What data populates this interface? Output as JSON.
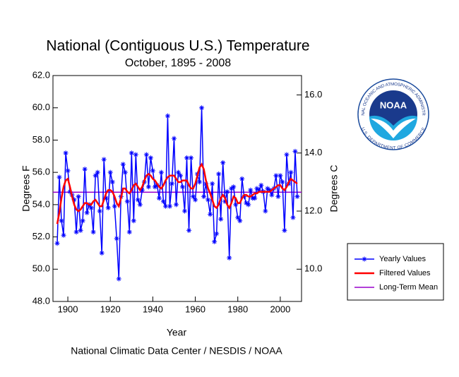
{
  "chart_data": {
    "type": "line",
    "title": "National (Contiguous U.S.) Temperature",
    "subtitle": "October, 1895 - 2008",
    "x_label": "Year",
    "y_label": "Degrees F",
    "y2_label": "Degrees C",
    "footer": "National Climatic Data Center / NESDIS / NOAA",
    "x": [
      1895,
      1896,
      1897,
      1898,
      1899,
      1900,
      1901,
      1902,
      1903,
      1904,
      1905,
      1906,
      1907,
      1908,
      1909,
      1910,
      1911,
      1912,
      1913,
      1914,
      1915,
      1916,
      1917,
      1918,
      1919,
      1920,
      1921,
      1922,
      1923,
      1924,
      1925,
      1926,
      1927,
      1928,
      1929,
      1930,
      1931,
      1932,
      1933,
      1934,
      1935,
      1936,
      1937,
      1938,
      1939,
      1940,
      1941,
      1942,
      1943,
      1944,
      1945,
      1946,
      1947,
      1948,
      1949,
      1950,
      1951,
      1952,
      1953,
      1954,
      1955,
      1956,
      1957,
      1958,
      1959,
      1960,
      1961,
      1962,
      1963,
      1964,
      1965,
      1966,
      1967,
      1968,
      1969,
      1970,
      1971,
      1972,
      1973,
      1974,
      1975,
      1976,
      1977,
      1978,
      1979,
      1980,
      1981,
      1982,
      1983,
      1984,
      1985,
      1986,
      1987,
      1988,
      1989,
      1990,
      1991,
      1992,
      1993,
      1994,
      1995,
      1996,
      1997,
      1998,
      1999,
      2000,
      2001,
      2002,
      2003,
      2004,
      2005,
      2006,
      2007,
      2008
    ],
    "series": [
      {
        "name": "Yearly Values",
        "color": "#0000ff",
        "marker": "asterisk",
        "values": [
          51.6,
          55.7,
          53.0,
          52.1,
          57.2,
          56.1,
          54.8,
          54.6,
          54.3,
          52.3,
          54.5,
          52.4,
          53.0,
          56.2,
          53.5,
          54.0,
          53.8,
          52.3,
          55.8,
          56.0,
          53.6,
          51.0,
          56.8,
          54.4,
          53.8,
          56.0,
          55.4,
          53.9,
          51.9,
          49.4,
          54.5,
          56.5,
          56.0,
          54.2,
          52.3,
          57.2,
          53.0,
          57.1,
          54.3,
          54.0,
          54.9,
          55.4,
          57.1,
          55.1,
          56.9,
          56.1,
          55.1,
          55.2,
          54.4,
          56.0,
          54.2,
          53.9,
          59.5,
          53.9,
          55.3,
          58.1,
          54.0,
          56.0,
          55.8,
          55.1,
          53.6,
          56.9,
          52.4,
          56.9,
          54.5,
          54.3,
          55.9,
          55.4,
          60.0,
          54.5,
          55.3,
          54.3,
          53.4,
          55.3,
          51.7,
          52.2,
          55.9,
          53.1,
          56.6,
          54.2,
          54.8,
          50.7,
          55.0,
          55.1,
          54.0,
          53.2,
          53.0,
          55.6,
          54.5,
          54.1,
          54.0,
          54.9,
          54.4,
          54.4,
          55.0,
          54.9,
          55.2,
          54.8,
          53.6,
          55.0,
          54.9,
          54.6,
          55.0,
          55.8,
          54.5,
          55.8,
          55.4,
          52.4,
          57.1,
          55.3,
          56.0,
          53.2,
          57.3,
          54.5
        ]
      },
      {
        "name": "Filtered Values",
        "color": "#ff0000",
        "values": [
          52.8,
          53.5,
          54.4,
          55.1,
          55.5,
          55.6,
          55.1,
          54.5,
          54.0,
          53.7,
          53.6,
          53.7,
          53.9,
          54.1,
          54.1,
          54.0,
          54.0,
          54.2,
          54.3,
          54.1,
          53.9,
          53.9,
          54.3,
          54.7,
          54.9,
          54.9,
          54.8,
          54.5,
          54.1,
          53.9,
          54.4,
          55.0,
          55.0,
          54.8,
          54.7,
          54.9,
          55.2,
          55.3,
          55.1,
          54.9,
          55.1,
          55.5,
          55.8,
          55.9,
          55.8,
          55.6,
          55.5,
          55.3,
          55.1,
          55.0,
          55.2,
          55.5,
          55.7,
          55.8,
          55.8,
          55.8,
          55.6,
          55.4,
          55.4,
          55.5,
          55.5,
          55.5,
          55.2,
          55.0,
          55.0,
          55.3,
          55.8,
          56.3,
          56.5,
          56.2,
          55.5,
          55.0,
          54.7,
          54.3,
          53.9,
          53.8,
          54.0,
          54.4,
          54.6,
          54.4,
          54.0,
          53.8,
          54.1,
          54.5,
          54.4,
          54.1,
          54.1,
          54.4,
          54.6,
          54.6,
          54.5,
          54.5,
          54.6,
          54.7,
          54.7,
          54.8,
          54.8,
          54.8,
          54.8,
          54.8,
          54.8,
          54.9,
          55.0,
          55.1,
          55.2,
          55.2,
          55.0,
          54.9,
          55.1,
          55.4,
          55.6,
          55.5,
          55.4,
          55.3
        ]
      }
    ],
    "mean": {
      "name": "Long-Term Mean",
      "color": "#9900cc",
      "value": 54.77
    },
    "xlim": [
      1893,
      2010
    ],
    "xticks": [
      1900,
      1920,
      1940,
      1960,
      1980,
      2000
    ],
    "ylim": [
      48,
      62
    ],
    "yticks": [
      {
        "value": 48,
        "label": "48.0"
      },
      {
        "value": 50,
        "label": "50.0"
      },
      {
        "value": 52,
        "label": "52.0"
      },
      {
        "value": 54,
        "label": "54.0"
      },
      {
        "value": 56,
        "label": "56.0"
      },
      {
        "value": 58,
        "label": "58.0"
      },
      {
        "value": 60,
        "label": "60.0"
      },
      {
        "value": 62,
        "label": "62.0"
      }
    ],
    "y2lim": [
      8.889,
      16.667
    ],
    "y2ticks": [
      {
        "value": 10,
        "label": "10.0"
      },
      {
        "value": 12,
        "label": "12.0"
      },
      {
        "value": 14,
        "label": "14.0"
      },
      {
        "value": 16,
        "label": "16.0"
      }
    ],
    "legend": "right",
    "logo": {
      "text": "NOAA",
      "top_ring": "NATIONAL OCEANIC AND ATMOSPHERIC ADMINISTRATION",
      "bottom_ring": "U.S. DEPARTMENT OF COMMERCE"
    }
  }
}
